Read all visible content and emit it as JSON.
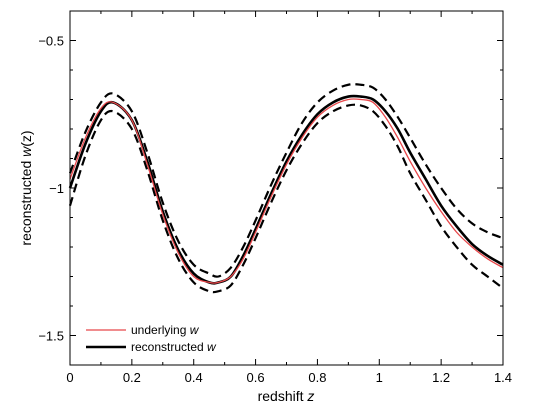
{
  "chart_data": {
    "type": "line",
    "xlabel": "redshift",
    "xlabel_var": "z",
    "ylabel": "reconstructed",
    "ylabel_var": "w",
    "ylabel_arg": "(z)",
    "xlim": [
      0,
      1.4
    ],
    "ylim": [
      -1.6,
      -0.4
    ],
    "x_ticks": [
      0,
      0.2,
      0.4,
      0.6,
      0.8,
      1,
      1.2,
      1.4
    ],
    "x_tick_labels": [
      "0",
      "0.2",
      "0.4",
      "0.6",
      "0.8",
      "1",
      "1.2",
      "1.4"
    ],
    "y_ticks": [
      -1.5,
      -1,
      -0.5
    ],
    "y_tick_labels": [
      "−1.5",
      "−1",
      "−0.5"
    ],
    "grid": false,
    "legend_position": "bottom-left",
    "series": [
      {
        "name": "underlying",
        "name_var": "w",
        "color": "#e8474a",
        "style": "solid",
        "x": [
          0,
          0.05,
          0.1,
          0.14,
          0.2,
          0.25,
          0.3,
          0.35,
          0.4,
          0.45,
          0.48,
          0.52,
          0.56,
          0.6,
          0.65,
          0.7,
          0.75,
          0.8,
          0.85,
          0.9,
          0.94,
          0.98,
          1.02,
          1.06,
          1.1,
          1.15,
          1.2,
          1.25,
          1.3,
          1.35,
          1.4
        ],
        "y": [
          -0.97,
          -0.83,
          -0.73,
          -0.71,
          -0.77,
          -0.92,
          -1.09,
          -1.22,
          -1.3,
          -1.32,
          -1.32,
          -1.3,
          -1.24,
          -1.15,
          -1.03,
          -0.92,
          -0.83,
          -0.76,
          -0.72,
          -0.7,
          -0.7,
          -0.71,
          -0.76,
          -0.83,
          -0.91,
          -1.0,
          -1.08,
          -1.15,
          -1.2,
          -1.24,
          -1.27
        ]
      },
      {
        "name": "reconstructed",
        "name_var": "w",
        "color": "#000000",
        "style": "solid",
        "x": [
          0,
          0.05,
          0.1,
          0.14,
          0.2,
          0.25,
          0.3,
          0.35,
          0.4,
          0.45,
          0.48,
          0.52,
          0.56,
          0.6,
          0.65,
          0.7,
          0.75,
          0.8,
          0.85,
          0.9,
          0.94,
          0.98,
          1.02,
          1.06,
          1.1,
          1.15,
          1.2,
          1.25,
          1.3,
          1.35,
          1.4
        ],
        "y": [
          -1.0,
          -0.85,
          -0.74,
          -0.71,
          -0.77,
          -0.91,
          -1.08,
          -1.21,
          -1.29,
          -1.32,
          -1.32,
          -1.3,
          -1.23,
          -1.14,
          -1.02,
          -0.91,
          -0.82,
          -0.75,
          -0.71,
          -0.69,
          -0.69,
          -0.7,
          -0.74,
          -0.8,
          -0.88,
          -0.97,
          -1.06,
          -1.13,
          -1.19,
          -1.23,
          -1.26
        ]
      },
      {
        "color": "#000000",
        "style": "dashed",
        "x": [
          0,
          0.05,
          0.1,
          0.14,
          0.2,
          0.25,
          0.3,
          0.35,
          0.4,
          0.45,
          0.48,
          0.52,
          0.56,
          0.6,
          0.65,
          0.7,
          0.75,
          0.8,
          0.85,
          0.9,
          0.94,
          0.98,
          1.02,
          1.06,
          1.1,
          1.15,
          1.2,
          1.25,
          1.3,
          1.35,
          1.4
        ],
        "y": [
          -0.95,
          -0.81,
          -0.71,
          -0.68,
          -0.74,
          -0.88,
          -1.05,
          -1.18,
          -1.26,
          -1.29,
          -1.3,
          -1.27,
          -1.2,
          -1.11,
          -0.99,
          -0.88,
          -0.78,
          -0.71,
          -0.67,
          -0.65,
          -0.65,
          -0.66,
          -0.7,
          -0.76,
          -0.83,
          -0.92,
          -1.0,
          -1.07,
          -1.12,
          -1.15,
          -1.17
        ]
      },
      {
        "color": "#000000",
        "style": "dashed",
        "x": [
          0,
          0.05,
          0.1,
          0.14,
          0.2,
          0.25,
          0.3,
          0.35,
          0.4,
          0.45,
          0.48,
          0.52,
          0.56,
          0.6,
          0.65,
          0.7,
          0.75,
          0.8,
          0.85,
          0.9,
          0.94,
          0.98,
          1.02,
          1.06,
          1.1,
          1.15,
          1.2,
          1.25,
          1.3,
          1.35,
          1.4
        ],
        "y": [
          -1.06,
          -0.89,
          -0.77,
          -0.74,
          -0.8,
          -0.94,
          -1.11,
          -1.24,
          -1.32,
          -1.35,
          -1.35,
          -1.33,
          -1.26,
          -1.17,
          -1.05,
          -0.94,
          -0.85,
          -0.78,
          -0.74,
          -0.72,
          -0.72,
          -0.74,
          -0.79,
          -0.86,
          -0.95,
          -1.04,
          -1.13,
          -1.2,
          -1.26,
          -1.3,
          -1.34
        ]
      }
    ]
  }
}
